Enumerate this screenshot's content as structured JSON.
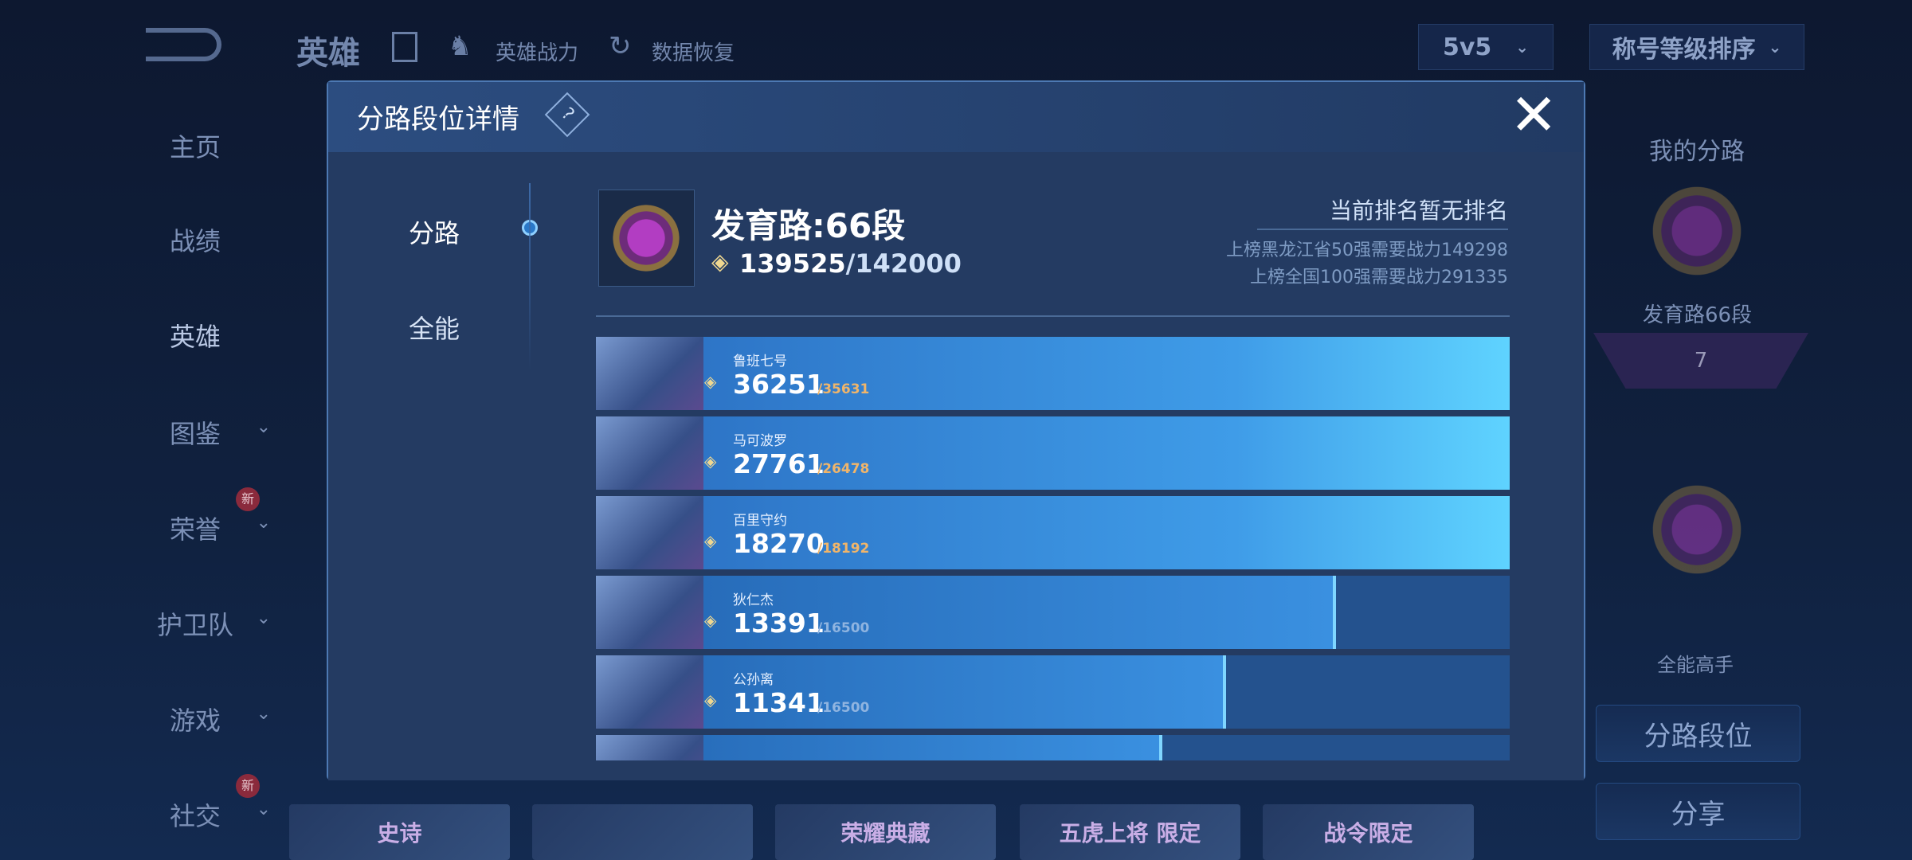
{
  "background": {
    "topbar": {
      "title": "英雄",
      "hero_power": "英雄战力",
      "data_restore": "数据恢复",
      "mode_select": "5v5",
      "sort_select": "称号等级排序"
    },
    "sidebar": [
      {
        "label": "主页"
      },
      {
        "label": "战绩"
      },
      {
        "label": "英雄",
        "active": true
      },
      {
        "label": "图鉴",
        "chevron": true
      },
      {
        "label": "荣誉",
        "chevron": true,
        "badge": "新"
      },
      {
        "label": "护卫队",
        "chevron": true
      },
      {
        "label": "游戏",
        "chevron": true
      },
      {
        "label": "社交",
        "chevron": true,
        "badge": "新"
      }
    ],
    "right_panel": {
      "title": "我的分路",
      "lane_rank": "发育路66段",
      "emblem_level": "7",
      "allround_title": "全能高手",
      "lane_rank_button": "分路段位",
      "share_button": "分享"
    },
    "cards": [
      "史诗",
      "",
      "荣耀典藏",
      "五虎上将 限定",
      "战令限定"
    ]
  },
  "modal": {
    "title": "分路段位详情",
    "help_icon": "?",
    "tabs": [
      {
        "label": "分路",
        "active": true
      },
      {
        "label": "全能"
      }
    ],
    "lane_title": "发育路:66段",
    "power": "139525",
    "power_target": "/142000",
    "rank_status": "当前排名暂无排名",
    "req_province": "上榜黑龙江省50强需要战力149298",
    "req_national": "上榜全国100强需要战力291335",
    "heroes": [
      {
        "name": "鲁班七号",
        "power": "36251",
        "target": "/35631",
        "progress": 1.0,
        "reached": true
      },
      {
        "name": "马可波罗",
        "power": "27761",
        "target": "/26478",
        "progress": 1.0,
        "reached": true
      },
      {
        "name": "百里守约",
        "power": "18270",
        "target": "/18192",
        "progress": 1.0,
        "reached": true
      },
      {
        "name": "狄仁杰",
        "power": "13391",
        "target": "/16500",
        "progress": 0.81,
        "reached": false
      },
      {
        "name": "公孙离",
        "power": "11341",
        "target": "/16500",
        "progress": 0.69,
        "reached": false
      },
      {
        "name": "",
        "power": "",
        "target": "",
        "progress": 0.62,
        "reached": false
      }
    ],
    "colors": {
      "reached_target": "#f0b56a",
      "unreached_target": "#8fb4e0",
      "accent": "#5fd3ff"
    }
  }
}
